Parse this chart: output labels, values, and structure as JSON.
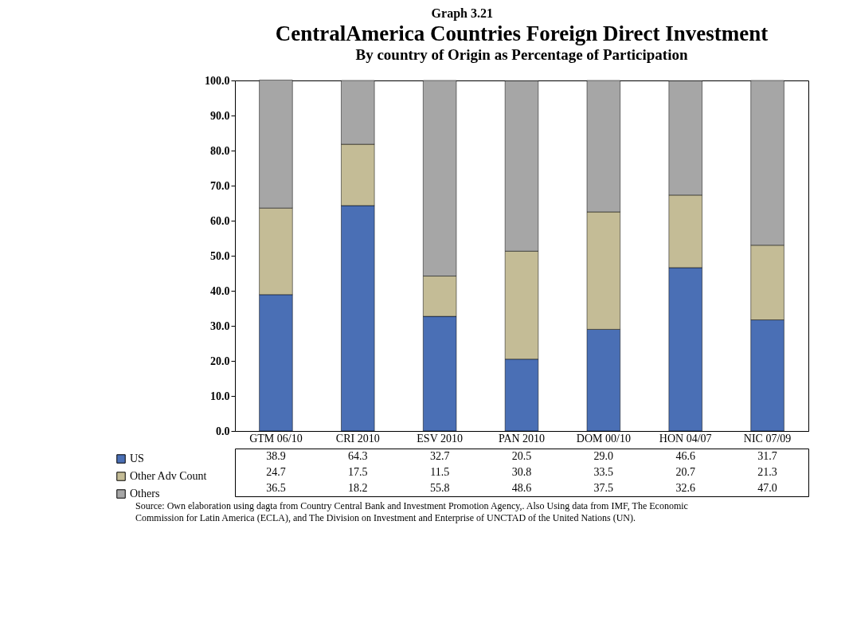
{
  "chart_data": {
    "type": "bar",
    "stacked": true,
    "title": "CentralAmerica Countries Foreign Direct Investment",
    "subtitle": "By country of Origin  as Percentage of  Participation",
    "annotations": [
      "Graph 3.21",
      "Source: Own elaboration using dagta from Country Central Bank and Investment Promotion Agency,. Also Using data from IMF, The Economic Commission for Latin America (ECLA), and The Division on Investment and Enterprise of UNCTAD of the United Nations (UN)."
    ],
    "categories": [
      "GTM 06/10",
      "CRI 2010",
      "ESV 2010",
      "PAN 2010",
      "DOM 00/10",
      "HON 04/07",
      "NIC 07/09"
    ],
    "series": [
      {
        "name": "US",
        "color": "#4a6fb5",
        "values": [
          38.9,
          64.3,
          32.7,
          20.5,
          29.0,
          46.6,
          31.7
        ],
        "value_labels": [
          "38.9",
          "64.3",
          "32.7",
          "20.5",
          "29.0",
          "46.6",
          "31.7"
        ]
      },
      {
        "name": "Other Adv Count",
        "color": "#c4bc96",
        "values": [
          24.7,
          17.5,
          11.5,
          30.8,
          33.5,
          20.7,
          21.3
        ],
        "value_labels": [
          "24.7",
          "17.5",
          "11.5",
          "30.8",
          "33.5",
          "20.7",
          "21.3"
        ]
      },
      {
        "name": "Others",
        "color": "#a6a6a6",
        "values": [
          36.5,
          18.2,
          55.8,
          48.6,
          37.5,
          32.6,
          47.0
        ],
        "value_labels": [
          "36.5",
          "18.2",
          "55.8",
          "48.6",
          "37.5",
          "32.6",
          "47.0"
        ]
      }
    ],
    "ylim": [
      0,
      100
    ],
    "yticks": [
      {
        "value": 0,
        "label": "0.0"
      },
      {
        "value": 10,
        "label": "10.0"
      },
      {
        "value": 20,
        "label": "20.0"
      },
      {
        "value": 30,
        "label": "30.0"
      },
      {
        "value": 40,
        "label": "40.0"
      },
      {
        "value": 50,
        "label": "50.0"
      },
      {
        "value": 60,
        "label": "60.0"
      },
      {
        "value": 70,
        "label": "70.0"
      },
      {
        "value": 80,
        "label": "80.0"
      },
      {
        "value": 90,
        "label": "90.0"
      },
      {
        "value": 100,
        "label": "100.0"
      }
    ],
    "grid": false,
    "legend": "bottom left"
  }
}
